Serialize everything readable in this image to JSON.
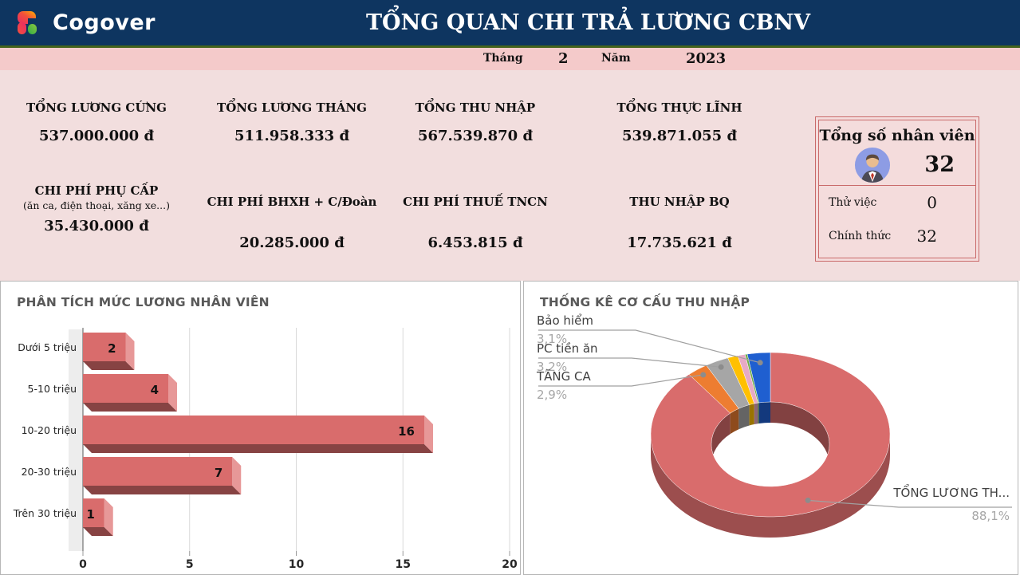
{
  "header": {
    "brand": "Cogover",
    "logo_icon": "cogover-logo-icon",
    "title": "TỔNG QUAN CHI TRẢ LƯƠNG CBNV"
  },
  "period": {
    "month_label": "Tháng",
    "month_value": "2",
    "year_label": "Năm",
    "year_value": "2023"
  },
  "kpis": [
    {
      "label": "TỔNG LƯƠNG CỨNG",
      "value": "537.000.000 đ"
    },
    {
      "label": "TỔNG LƯƠNG THÁNG",
      "value": "511.958.333 đ"
    },
    {
      "label": "TỔNG THU NHẬP",
      "value": "567.539.870 đ"
    },
    {
      "label": "TỔNG THỰC LĨNH",
      "value": "539.871.055 đ"
    },
    {
      "label": "CHI PHÍ PHỤ CẤP",
      "sublabel": "(ăn ca, điện thoại, xăng xe...)",
      "value": "35.430.000 đ"
    },
    {
      "label": "CHI PHÍ BHXH + C/Đoàn",
      "value": "20.285.000 đ"
    },
    {
      "label": "CHI PHÍ THUẾ TNCN",
      "value": "6.453.815 đ"
    },
    {
      "label": "THU NHẬP BQ",
      "value": "17.735.621 đ"
    }
  ],
  "employee_panel": {
    "title": "Tổng số nhân viên",
    "icon": "person-avatar-icon",
    "total": "32",
    "rows": [
      {
        "label": "Thử việc",
        "value": "0"
      },
      {
        "label": "Chính thức",
        "value": "32"
      }
    ]
  },
  "chart_data": [
    {
      "type": "bar",
      "orientation": "horizontal",
      "style": "3d",
      "title": "PHÂN TÍCH MỨC LƯƠNG NHÂN VIÊN",
      "categories": [
        "Dưới 5 triệu",
        "5-10 triệu",
        "10-20 triệu",
        "20-30 triệu",
        "Trên 30 triệu"
      ],
      "values": [
        2,
        4,
        16,
        7,
        1
      ],
      "xlim": [
        0,
        20
      ],
      "xticks": [
        0,
        5,
        10,
        15,
        20
      ],
      "bar_color": "#d96c6c",
      "grid": true,
      "data_labels": true
    },
    {
      "type": "pie",
      "subtype": "donut-3d",
      "title": "THỐNG KÊ CƠ CẤU THU NHẬP",
      "order": "clockwise-from-top",
      "slices": [
        {
          "name": "TỔNG LƯƠNG TH...",
          "pct": 88.1,
          "pct_label": "88,1%",
          "color": "#d96c6c",
          "labeled": true
        },
        {
          "name": "TĂNG CA",
          "pct": 2.9,
          "pct_label": "2,9%",
          "color": "#ed7d31",
          "labeled": true
        },
        {
          "name": "PC tiền ăn",
          "pct": 3.2,
          "pct_label": "3,2%",
          "color": "#a6a6a6",
          "labeled": true
        },
        {
          "name": "",
          "pct": 1.4,
          "color": "#ffc000",
          "labeled": false
        },
        {
          "name": "",
          "pct": 1.0,
          "color": "#e7aac5",
          "labeled": false
        },
        {
          "name": "",
          "pct": 0.3,
          "color": "#70ad47",
          "labeled": false
        },
        {
          "name": "Bảo hiểm",
          "pct": 3.1,
          "pct_label": "3,1%",
          "color": "#1f5fd0",
          "labeled": true
        }
      ]
    }
  ],
  "colors": {
    "header_bg": "#0e3560",
    "header_accent_line": "#44631c",
    "period_band": "#f4caca",
    "kpi_band": "#f2dede",
    "emp_panel_border": "#c96a6a",
    "chart_title": "#595959",
    "bar_color": "#d96c6c"
  }
}
